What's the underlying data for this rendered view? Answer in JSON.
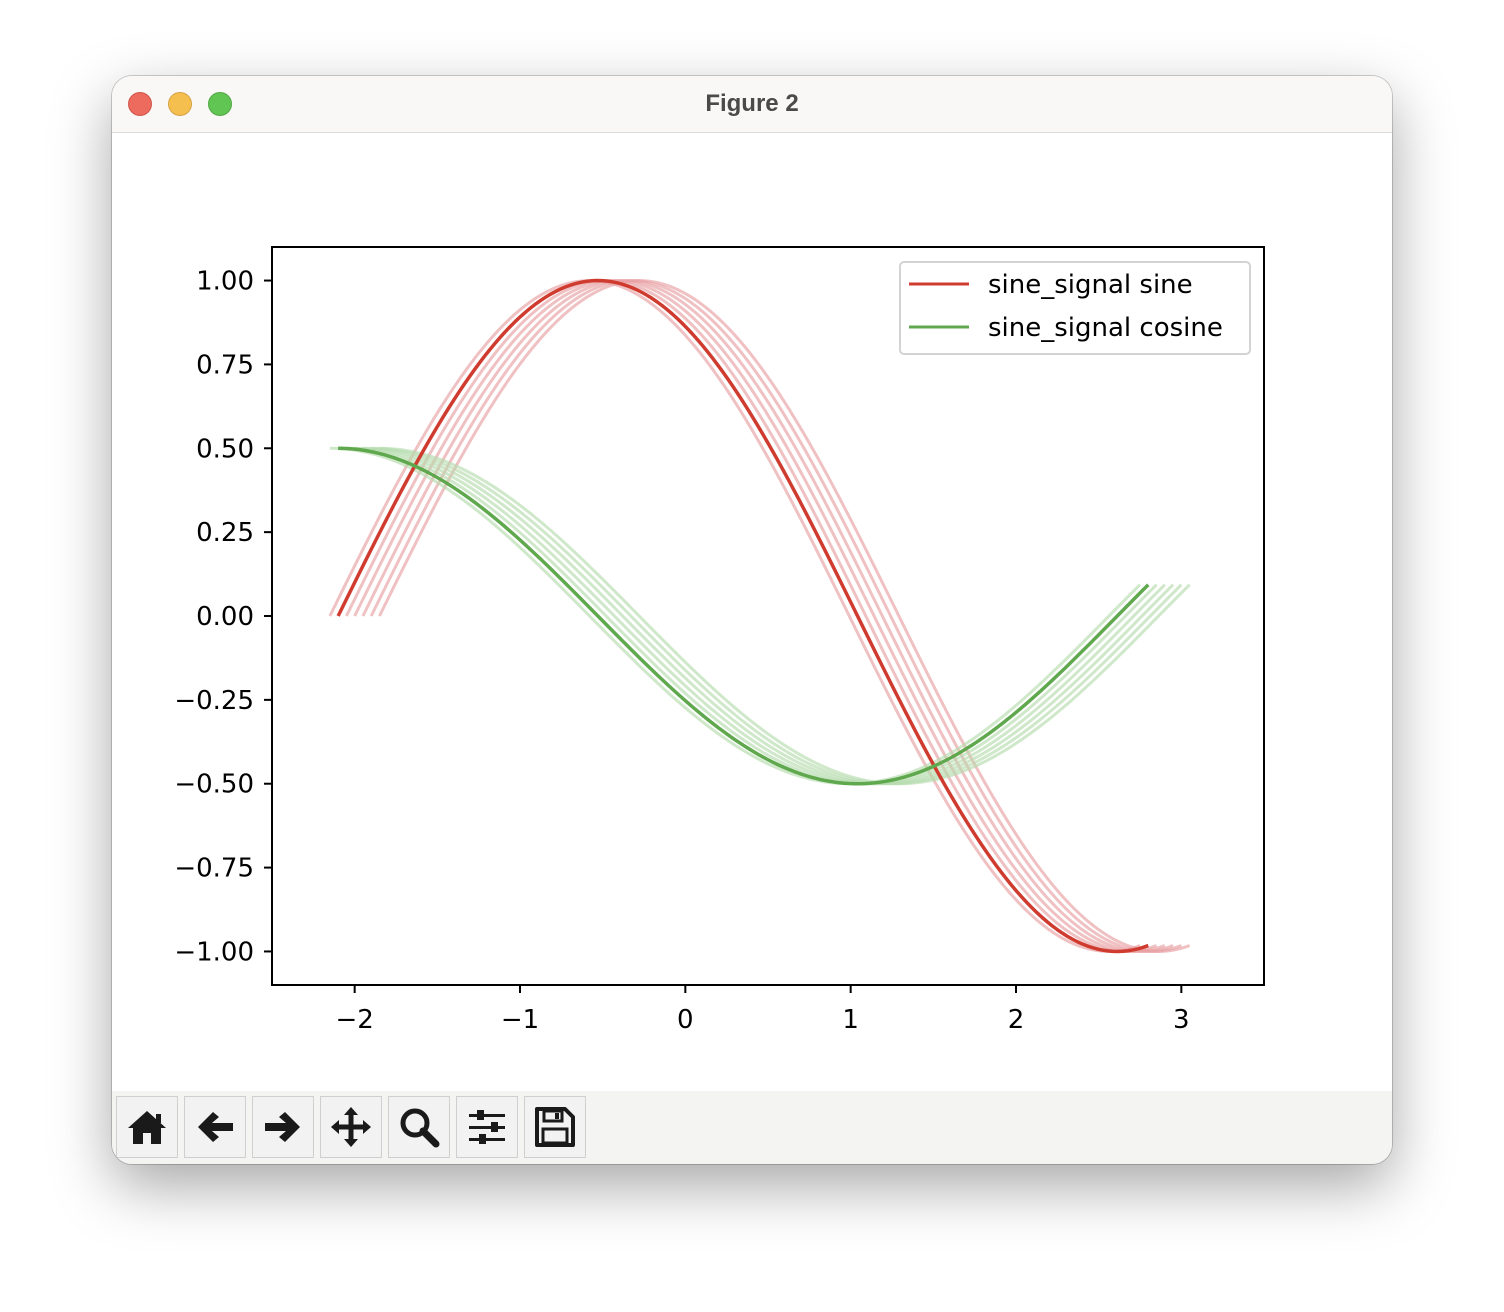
{
  "window": {
    "title": "Figure 2"
  },
  "toolbar": {
    "buttons": [
      {
        "name": "home-button",
        "icon": "home-icon"
      },
      {
        "name": "back-button",
        "icon": "arrow-left-icon"
      },
      {
        "name": "forward-button",
        "icon": "arrow-right-icon"
      },
      {
        "name": "pan-button",
        "icon": "move-icon"
      },
      {
        "name": "zoom-button",
        "icon": "magnifier-icon"
      },
      {
        "name": "configure-subplots-button",
        "icon": "sliders-icon"
      },
      {
        "name": "save-button",
        "icon": "floppy-disk-icon"
      }
    ]
  },
  "colors": {
    "sine": "#d03b2f",
    "cosine": "#5fa84e",
    "sine_ghost": "#e8a0a3",
    "cosine_ghost": "#b6dcae"
  },
  "chart_data": {
    "type": "line",
    "title": "",
    "xlabel": "",
    "ylabel": "",
    "xlim": [
      -2.5,
      3.5
    ],
    "ylim": [
      -1.1,
      1.1
    ],
    "xticks": [
      -2,
      -1,
      0,
      1,
      2,
      3
    ],
    "xtick_labels": [
      "−2",
      "−1",
      "0",
      "1",
      "2",
      "3"
    ],
    "yticks": [
      1.0,
      0.75,
      0.5,
      0.25,
      0.0,
      -0.25,
      -0.5,
      -0.75,
      -1.0
    ],
    "ytick_labels": [
      "1.00",
      "0.75",
      "0.50",
      "0.25",
      "0.00",
      "−0.25",
      "−0.50",
      "−0.75",
      "−1.00"
    ],
    "legend": {
      "position": "upper right",
      "entries": [
        "sine_signal sine",
        "sine_signal cosine"
      ]
    },
    "grid": false,
    "series": [
      {
        "name": "sine_signal sine",
        "function": "y = sin(x + 2.1)",
        "x_start": -2.1,
        "x_end": 2.8,
        "highlighted": true
      },
      {
        "name": "sine_signal cosine",
        "function": "y = 0.5 * cos(x + 2.1)",
        "x_start": -2.1,
        "x_end": 2.8,
        "highlighted": true
      }
    ],
    "ghost_traces": {
      "x_shifts": [
        -0.05,
        0.05,
        0.1,
        0.15,
        0.2,
        0.25
      ],
      "alpha": 0.35
    }
  }
}
